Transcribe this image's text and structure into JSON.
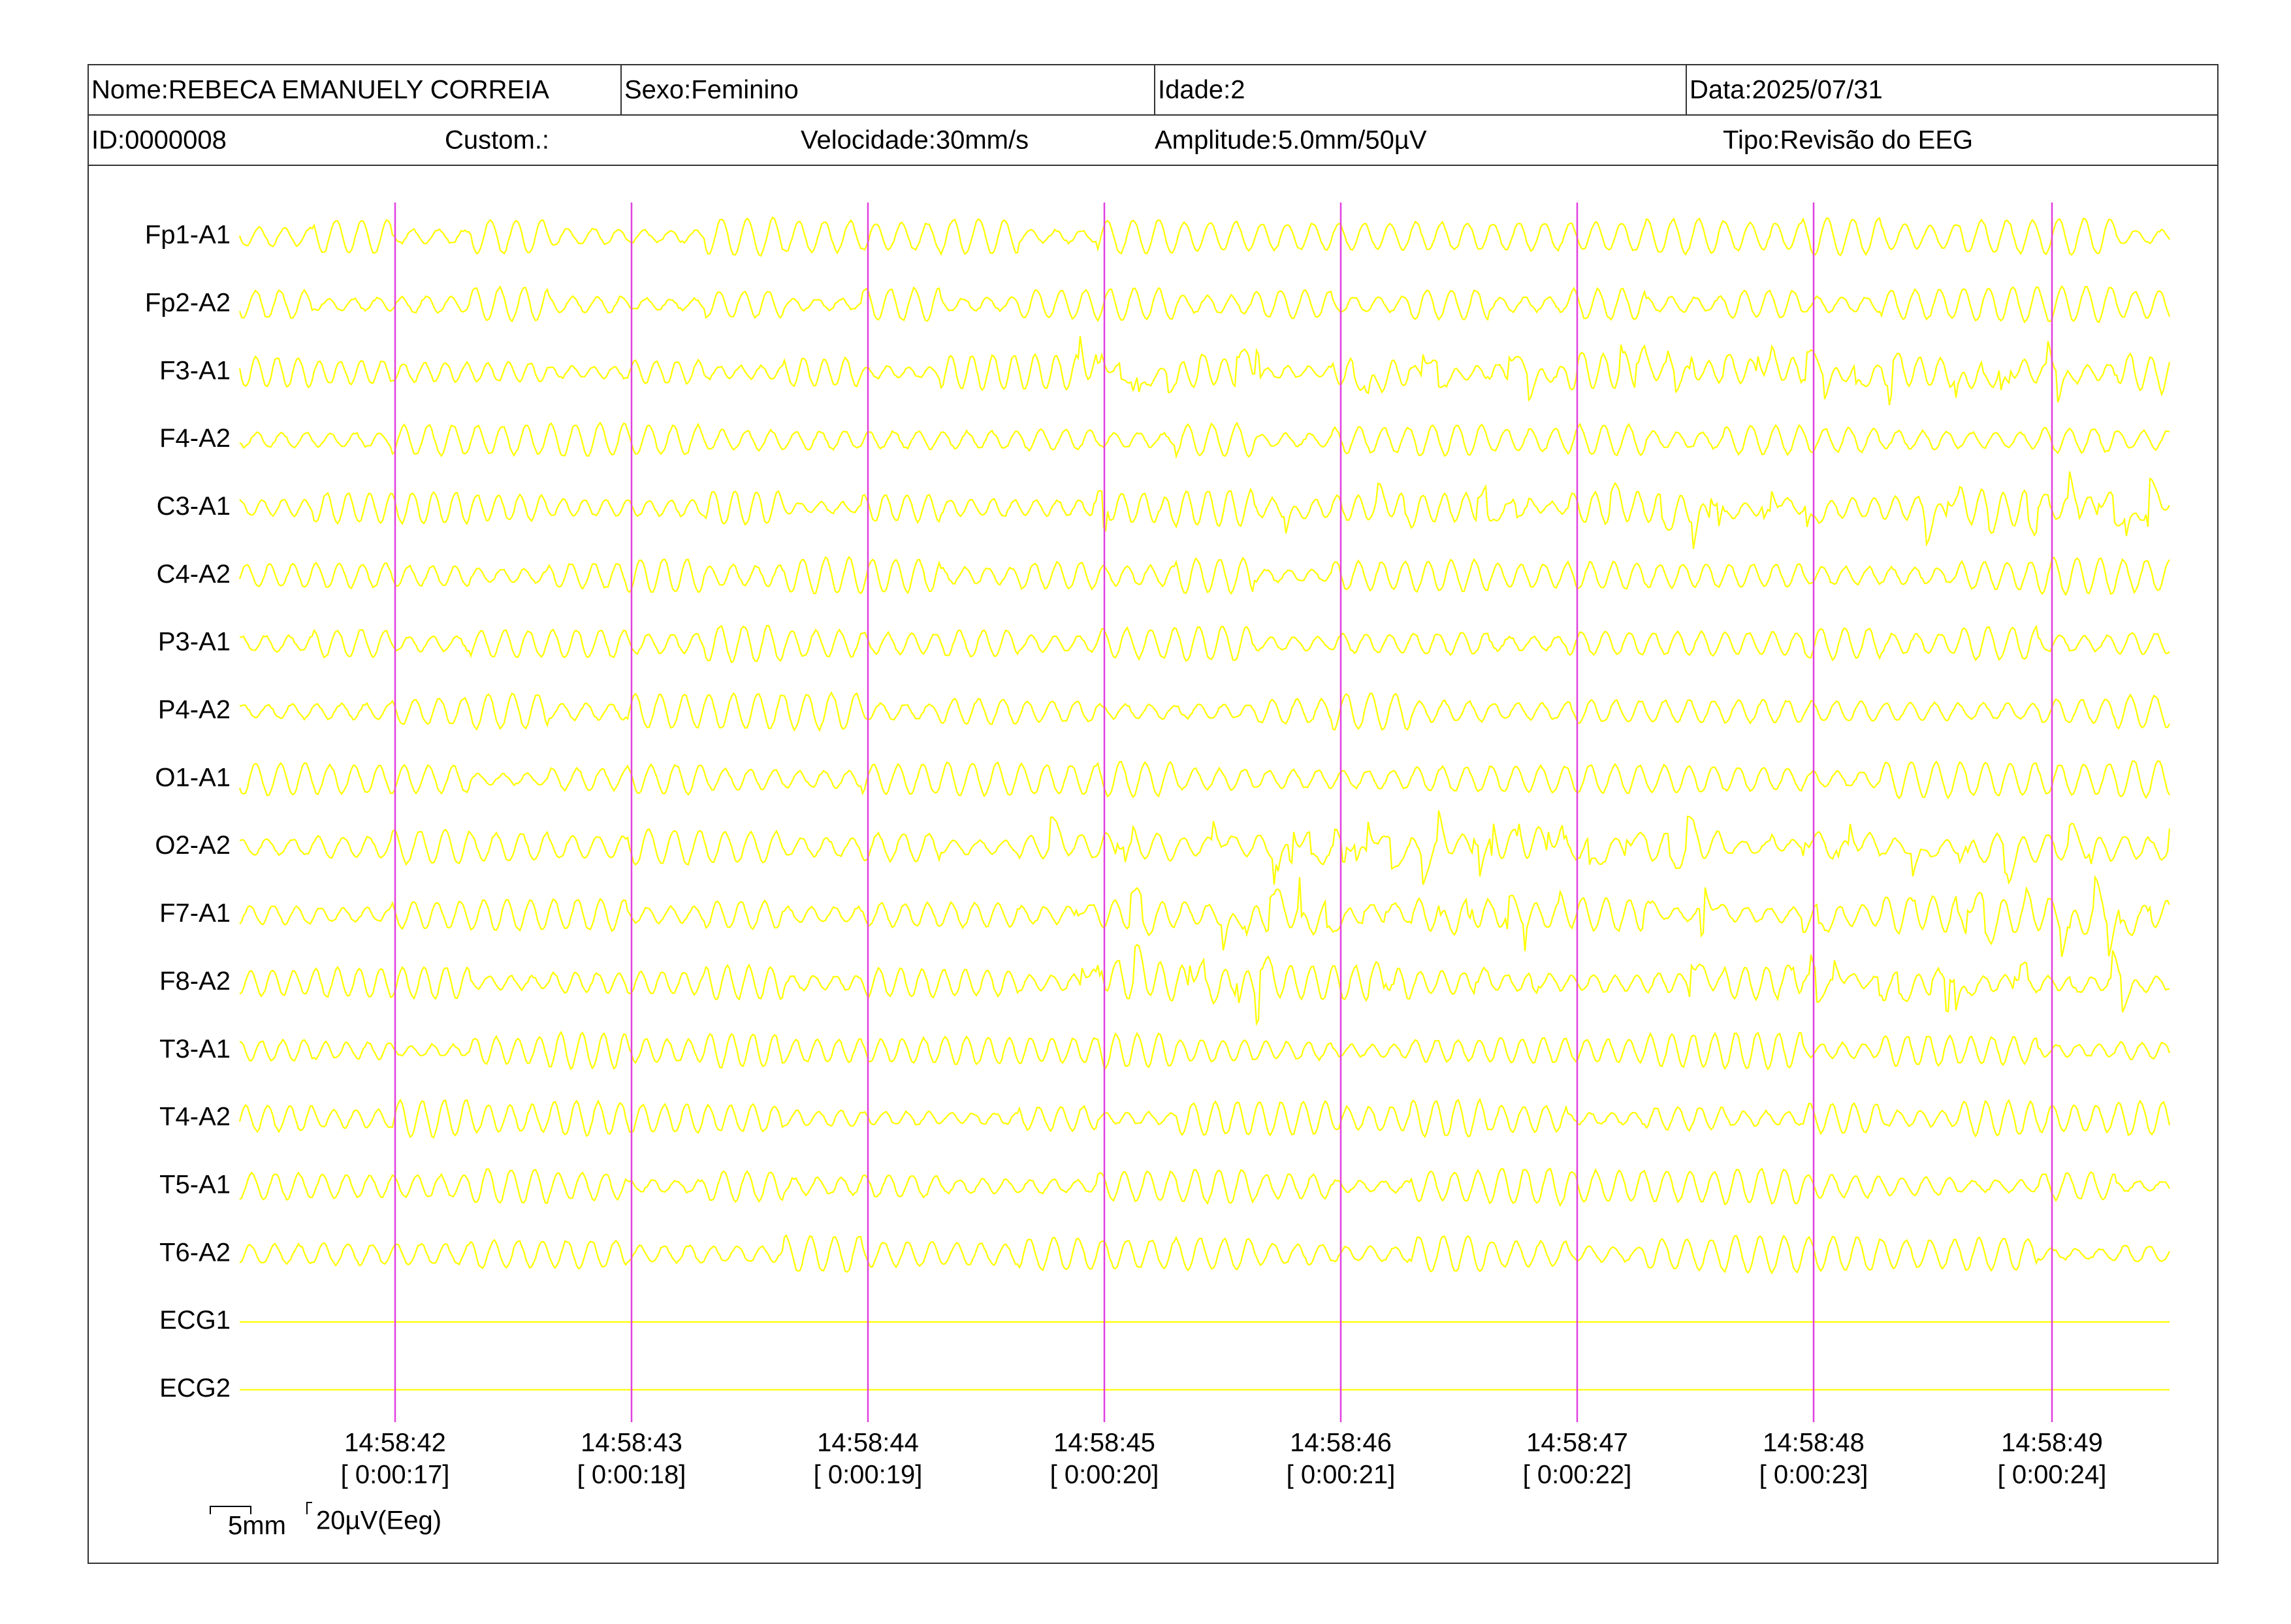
{
  "header": {
    "row1": [
      "Nome:REBECA EMANUELY CORREIA",
      "Sexo:Feminino",
      "Idade:2",
      "Data:2025/07/31"
    ],
    "row2": [
      "ID:0000008",
      "Custom.:",
      "Velocidade:30mm/s",
      "Amplitude:5.0mm/50µV",
      "Tipo:Revisão do EEG"
    ]
  },
  "channels": [
    "Fp1-A1",
    "Fp2-A2",
    "F3-A1",
    "F4-A2",
    "C3-A1",
    "C4-A2",
    "P3-A1",
    "P4-A2",
    "O1-A1",
    "O2-A2",
    "F7-A1",
    "F8-A2",
    "T3-A1",
    "T4-A2",
    "T5-A1",
    "T6-A2",
    "ECG1",
    "ECG2"
  ],
  "time_marks": [
    {
      "time": "14:58:42",
      "elapsed": "[ 0:00:17]"
    },
    {
      "time": "14:58:43",
      "elapsed": "[ 0:00:18]"
    },
    {
      "time": "14:58:44",
      "elapsed": "[ 0:00:19]"
    },
    {
      "time": "14:58:45",
      "elapsed": "[ 0:00:20]"
    },
    {
      "time": "14:58:46",
      "elapsed": "[ 0:00:21]"
    },
    {
      "time": "14:58:47",
      "elapsed": "[ 0:00:22]"
    },
    {
      "time": "14:58:48",
      "elapsed": "[ 0:00:23]"
    },
    {
      "time": "14:58:49",
      "elapsed": "[ 0:00:24]"
    }
  ],
  "scale": {
    "time": "5mm",
    "amplitude": "20µV(Eeg)"
  }
}
